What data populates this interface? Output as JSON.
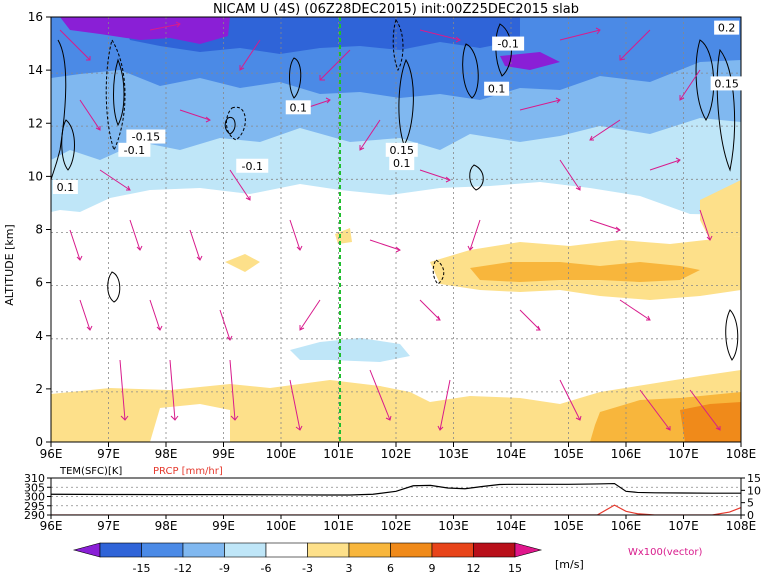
{
  "title": "NICAM U (4S) (06Z28DEC2015) init:00Z25DEC2015 slab",
  "colors": {
    "red_label": "#e53a2e",
    "magenta": "#d81b8c",
    "green_line": "#1fbf2e",
    "levels": [
      "#8a1fd6",
      "#2f64d8",
      "#4b8ae6",
      "#80b8f0",
      "#bfe6f8",
      "#ffffff",
      "#fde08a",
      "#f8b63c",
      "#f08a1a",
      "#e8441a",
      "#b80f1a",
      "#e0178c"
    ]
  },
  "chart_data": [
    {
      "type": "heatmap",
      "title": "NICAM U (4S) (06Z28DEC2015) init:00Z25DEC2015 slab",
      "xlabel": "",
      "ylabel": "ALTITUDE [km]",
      "x_ticks": [
        "96E",
        "97E",
        "98E",
        "99E",
        "100E",
        "101E",
        "102E",
        "103E",
        "104E",
        "105E",
        "106E",
        "107E",
        "108E"
      ],
      "y_ticks": [
        "0",
        "2",
        "4",
        "6",
        "8",
        "10",
        "12",
        "14",
        "16"
      ],
      "xlim": [
        96,
        108
      ],
      "ylim": [
        0,
        16
      ],
      "grid": true,
      "marker_line_lon": 101,
      "contour_labels": [
        {
          "text": "-0.1",
          "lon": 103.95,
          "alt": 15.0
        },
        {
          "text": "0.2",
          "lon": 107.75,
          "alt": 15.6
        },
        {
          "text": "0.15",
          "lon": 107.75,
          "alt": 13.5
        },
        {
          "text": "0.1",
          "lon": 103.75,
          "alt": 13.3
        },
        {
          "text": "0.1",
          "lon": 100.3,
          "alt": 12.6
        },
        {
          "text": "-0.15",
          "lon": 97.65,
          "alt": 11.5
        },
        {
          "text": "-0.1",
          "lon": 97.45,
          "alt": 11.0
        },
        {
          "text": "-0.1",
          "lon": 99.5,
          "alt": 10.4
        },
        {
          "text": "0.15",
          "lon": 102.1,
          "alt": 11.0
        },
        {
          "text": "0.1",
          "lon": 102.1,
          "alt": 10.5
        },
        {
          "text": "0.1",
          "lon": 96.25,
          "alt": 9.6
        }
      ],
      "vectors_label": "Wx100(vector)"
    },
    {
      "type": "line",
      "left_label": "TEM(SFC)[K]",
      "right_label": "PRCP [mm/hr]",
      "left_ticks": [
        "310",
        "305",
        "300",
        "295",
        "290"
      ],
      "right_ticks": [
        "15",
        "10",
        "5",
        "0"
      ],
      "left_ylim": [
        290,
        310
      ],
      "right_ylim": [
        0,
        15
      ],
      "x_ticks": [
        "96E",
        "97E",
        "98E",
        "99E",
        "100E",
        "101E",
        "102E",
        "103E",
        "104E",
        "105E",
        "106E",
        "107E",
        "108E"
      ],
      "series": [
        {
          "lon": [
            96,
            97,
            98,
            99,
            100,
            100.8,
            101.2,
            101.6,
            102.0,
            102.3,
            102.6,
            102.9,
            103.2,
            103.5,
            103.8,
            104,
            105,
            105.5,
            105.8,
            106.0,
            106.2,
            106.5,
            107,
            107.5,
            108
          ],
          "values": [
            301.2,
            301.1,
            301.0,
            301.0,
            300.9,
            300.8,
            300.8,
            301.2,
            302.8,
            305.8,
            306.0,
            304.6,
            304.2,
            305.4,
            306.5,
            306.6,
            306.6,
            306.8,
            307.0,
            302.8,
            302.2,
            302.0,
            301.9,
            301.8,
            301.8
          ]
        },
        {
          "lon": [
            96,
            97,
            98,
            99,
            100,
            101,
            102,
            103,
            104,
            105,
            105.5,
            105.8,
            106.0,
            106.2,
            106.5,
            107,
            107.5,
            107.8,
            108
          ],
          "values": [
            0,
            0,
            0,
            0,
            0,
            0,
            0,
            0,
            0,
            0,
            0,
            4,
            1.5,
            0.5,
            0,
            0,
            0,
            1.2,
            3.0
          ]
        }
      ]
    },
    {
      "type": "colorbar",
      "tick_labels": [
        "-15",
        "-12",
        "-9",
        "-6",
        "-3",
        "3",
        "6",
        "9",
        "12",
        "15"
      ],
      "unit": "[m/s]"
    }
  ]
}
